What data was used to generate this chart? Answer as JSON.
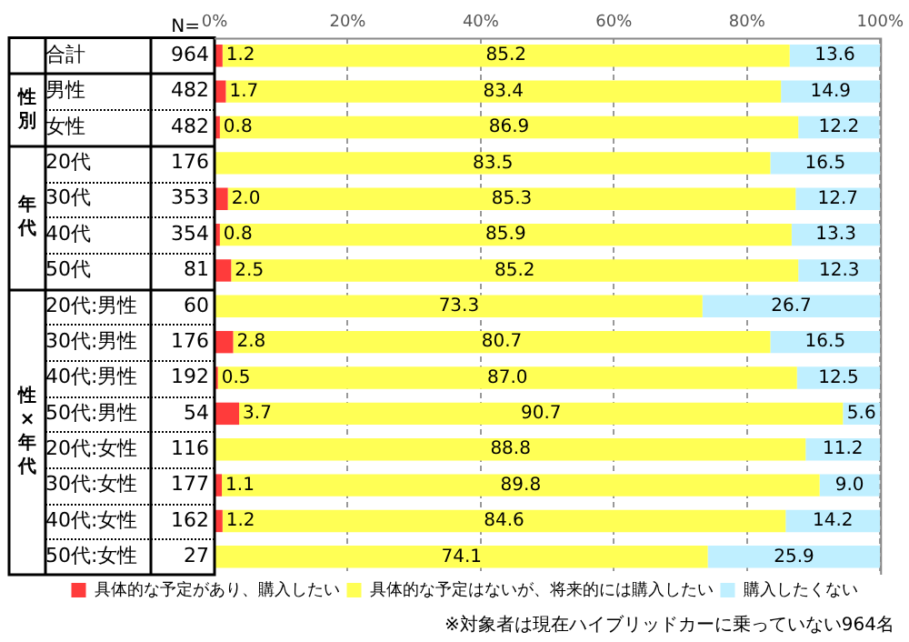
{
  "chart_data": {
    "type": "bar",
    "orientation": "horizontal",
    "stacked": true,
    "categories": [
      "合計",
      "男性",
      "女性",
      "20代",
      "30代",
      "40代",
      "50代",
      "20代:男性",
      "30代:男性",
      "40代:男性",
      "50代:男性",
      "20代:女性",
      "30代:女性",
      "40代:女性",
      "50代:女性"
    ],
    "y2_categories": [
      "964",
      "482",
      "482",
      "176",
      "353",
      "354",
      "81",
      "60",
      "176",
      "192",
      "54",
      "116",
      "177",
      "162",
      "27"
    ],
    "y2label": "N=",
    "series": [
      {
        "name": "具体的な予定があり、購入したい",
        "color": "#ff3b3b",
        "values": [
          1.2,
          1.7,
          0.8,
          0,
          2.0,
          0.8,
          2.5,
          0,
          2.8,
          0.5,
          3.7,
          0,
          1.1,
          1.2,
          0
        ],
        "value_labels": [
          "1.2",
          "1.7",
          "0.8",
          null,
          "2.0",
          "0.8",
          "2.5",
          null,
          "2.8",
          "0.5",
          "3.7",
          null,
          "1.1",
          "1.2",
          null
        ]
      },
      {
        "name": "具体的な予定はないが、将来的には購入したい",
        "color": "#ffff55",
        "values": [
          85.2,
          83.4,
          86.9,
          83.5,
          85.3,
          85.9,
          85.2,
          73.3,
          80.7,
          87.0,
          90.7,
          88.8,
          89.8,
          84.6,
          74.1
        ],
        "value_labels": [
          "85.2",
          "83.4",
          "86.9",
          "83.5",
          "85.3",
          "85.9",
          "85.2",
          "73.3",
          "80.7",
          "87.0",
          "90.7",
          "88.8",
          "89.8",
          "84.6",
          "74.1"
        ]
      },
      {
        "name": "購入したくない",
        "color": "#bfefff",
        "values": [
          13.6,
          14.9,
          12.2,
          16.5,
          12.7,
          13.3,
          12.3,
          26.7,
          16.5,
          12.5,
          5.6,
          11.2,
          9.0,
          14.2,
          25.9
        ],
        "value_labels": [
          "13.6",
          "14.9",
          "12.2",
          "16.5",
          "12.7",
          "13.3",
          "12.3",
          "26.7",
          "16.5",
          "12.5",
          "5.6",
          "11.2",
          "9.0",
          "14.2",
          "25.9"
        ]
      }
    ],
    "xlim": [
      0,
      100
    ],
    "xticks": [
      {
        "value": 0,
        "label": "0%"
      },
      {
        "value": 20,
        "label": "20%"
      },
      {
        "value": 40,
        "label": "40%"
      },
      {
        "value": 60,
        "label": "60%"
      },
      {
        "value": 80,
        "label": "80%"
      },
      {
        "value": 100,
        "label": "100%"
      }
    ],
    "grid": "x",
    "legend": "bottom",
    "annotations": [
      "性別",
      "年代",
      "性×年代",
      "※対象者は現在ハイブリッドカーに乗っていない964名"
    ]
  }
}
